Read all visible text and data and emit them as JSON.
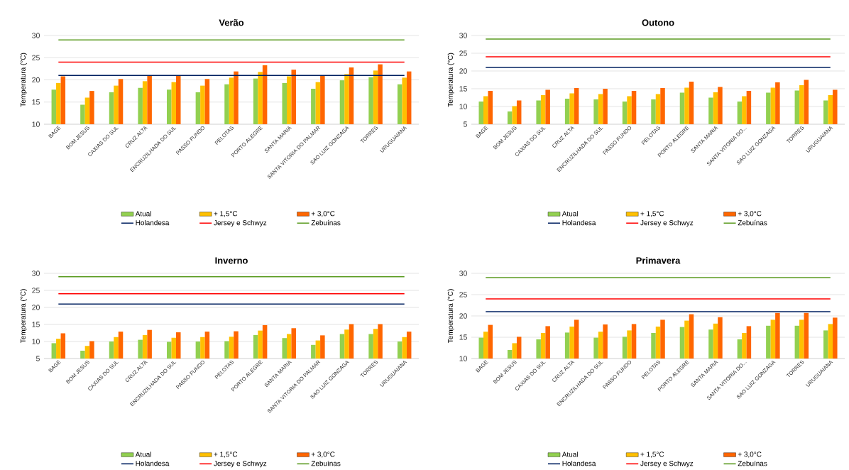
{
  "chart_data": [
    {
      "type": "bar",
      "title": "Verão",
      "ylabel": "Temperatura (°C)",
      "categories": [
        "BAGE",
        "BOM JESUS",
        "CAXIAS DO SUL",
        "CRUZ ALTA",
        "ENCRUZILHADA DO SUL",
        "PASSO FUNDO",
        "PELOTAS",
        "PORTO ALEGRE",
        "SANTA MARIA",
        "SANTA VITORIA DO PALMAR",
        "SAO LUIZ GONZAGA",
        "TORRES",
        "URUGUAIANA"
      ],
      "ylim": [
        10,
        30
      ],
      "yticks": [
        10,
        15,
        20,
        25,
        30
      ],
      "grid": "y",
      "legend": "bottom",
      "series": [
        {
          "name": "Atual",
          "color": "#92d050",
          "values": [
            17.8,
            14.4,
            17.2,
            18.2,
            17.8,
            17.2,
            19.0,
            20.3,
            19.3,
            18.0,
            19.9,
            20.6,
            19.0
          ]
        },
        {
          "name": "+ 1,5°C",
          "type": "bar",
          "color": "#ffc000",
          "values": [
            19.3,
            16.0,
            18.7,
            19.7,
            19.5,
            18.7,
            20.5,
            21.8,
            20.8,
            19.5,
            21.3,
            22.1,
            20.5
          ]
        },
        {
          "name": "+ 3,0°C",
          "type": "bar",
          "color": "#ff6600",
          "values": [
            20.8,
            17.5,
            20.2,
            21.0,
            21.0,
            20.2,
            21.9,
            23.3,
            22.3,
            21.0,
            22.8,
            23.5,
            21.9
          ]
        },
        {
          "name": "Holandesa",
          "type": "line",
          "color": "#002060",
          "values": [
            21,
            21,
            21,
            21,
            21,
            21,
            21,
            21,
            21,
            21,
            21,
            21,
            21
          ]
        },
        {
          "name": "Jersey e Schwyz",
          "type": "line",
          "color": "#ff0000",
          "values": [
            24,
            24,
            24,
            24,
            24,
            24,
            24,
            24,
            24,
            24,
            24,
            24,
            24
          ]
        },
        {
          "name": "Zebuínas",
          "type": "line",
          "color": "#5b9b21",
          "values": [
            29,
            29,
            29,
            29,
            29,
            29,
            29,
            29,
            29,
            29,
            29,
            29,
            29
          ]
        }
      ]
    },
    {
      "type": "bar",
      "title": "Outono",
      "ylabel": "Temperatura (°C)",
      "categories": [
        "BAGE",
        "BOM JESUS",
        "CAXIAS DO SUL",
        "CRUZ ALTA",
        "ENCRUZILHADA DO SUL",
        "PASSO FUNDO",
        "PELOTAS",
        "PORTO ALEGRE",
        "SANTA MARIA",
        "SANTA VITORIA DO...",
        "SAO LUIZ GONZAGA",
        "TORRES",
        "URUGUAIANA"
      ],
      "ylim": [
        5,
        30
      ],
      "yticks": [
        5,
        10,
        15,
        20,
        25,
        30
      ],
      "grid": "y",
      "legend": "bottom",
      "series": [
        {
          "name": "Atual",
          "type": "bar",
          "color": "#92d050",
          "values": [
            11.4,
            8.6,
            11.7,
            12.2,
            12.0,
            11.4,
            12.0,
            13.9,
            12.5,
            11.4,
            13.9,
            14.5,
            11.7
          ]
        },
        {
          "name": "+ 1,5°C",
          "type": "bar",
          "color": "#ffc000",
          "values": [
            12.9,
            10.1,
            13.2,
            13.7,
            13.5,
            12.9,
            13.5,
            15.3,
            14.0,
            12.9,
            15.3,
            16.0,
            13.2
          ]
        },
        {
          "name": "+ 3,0°C",
          "type": "bar",
          "color": "#ff6600",
          "values": [
            14.4,
            11.7,
            14.7,
            15.2,
            15.0,
            14.4,
            15.2,
            17.0,
            15.5,
            14.4,
            16.8,
            17.5,
            14.7
          ]
        },
        {
          "name": "Holandesa",
          "type": "line",
          "color": "#002060",
          "values": [
            21,
            21,
            21,
            21,
            21,
            21,
            21,
            21,
            21,
            21,
            21,
            21,
            21
          ]
        },
        {
          "name": "Jersey e Schwyz",
          "type": "line",
          "color": "#ff0000",
          "values": [
            24,
            24,
            24,
            24,
            24,
            24,
            24,
            24,
            24,
            24,
            24,
            24,
            24
          ]
        },
        {
          "name": "Zebuínas",
          "type": "line",
          "color": "#5b9b21",
          "values": [
            29,
            29,
            29,
            29,
            29,
            29,
            29,
            29,
            29,
            29,
            29,
            29,
            29
          ]
        }
      ]
    },
    {
      "type": "bar",
      "title": "Inverno",
      "ylabel": "Temperatura (°C)",
      "categories": [
        "BAGE",
        "BOM JESUS",
        "CAXIAS DO SUL",
        "CRUZ ALTA",
        "ENCRUZILHADA DO SUL",
        "PASSO FUNDO",
        "PELOTAS",
        "PORTO ALEGRE",
        "SANTA MARIA",
        "SANTA VITORIA DO PALMAR",
        "SAO LUIZ GONZAGA",
        "TORRES",
        "URUGUAIANA"
      ],
      "ylim": [
        5,
        30
      ],
      "yticks": [
        5,
        10,
        15,
        20,
        25,
        30
      ],
      "grid": "y",
      "legend": "bottom",
      "series": [
        {
          "name": "Atual",
          "type": "bar",
          "color": "#92d050",
          "values": [
            9.5,
            7.3,
            10.0,
            10.5,
            9.9,
            10.0,
            10.1,
            11.9,
            11.0,
            9.0,
            12.2,
            12.2,
            10.0
          ]
        },
        {
          "name": "+ 1,5°C",
          "type": "bar",
          "color": "#ffc000",
          "values": [
            10.8,
            8.7,
            11.3,
            11.9,
            11.1,
            11.3,
            11.4,
            13.2,
            12.2,
            10.3,
            13.5,
            13.7,
            11.3
          ]
        },
        {
          "name": "+ 3,0°C",
          "type": "bar",
          "color": "#ff6600",
          "values": [
            12.4,
            10.1,
            12.9,
            13.4,
            12.7,
            12.9,
            13.0,
            14.8,
            13.9,
            11.8,
            15.1,
            15.1,
            12.9
          ]
        },
        {
          "name": "Holandesa",
          "type": "line",
          "color": "#002060",
          "values": [
            21,
            21,
            21,
            21,
            21,
            21,
            21,
            21,
            21,
            21,
            21,
            21,
            21
          ]
        },
        {
          "name": "Jersey e Schwyz",
          "type": "line",
          "color": "#ff0000",
          "values": [
            24,
            24,
            24,
            24,
            24,
            24,
            24,
            24,
            24,
            24,
            24,
            24,
            24
          ]
        },
        {
          "name": "Zebuínas",
          "type": "line",
          "color": "#5b9b21",
          "values": [
            29,
            29,
            29,
            29,
            29,
            29,
            29,
            29,
            29,
            29,
            29,
            29,
            29
          ]
        }
      ]
    },
    {
      "type": "bar",
      "title": "Primavera",
      "ylabel": "Temperatura (°C)",
      "categories": [
        "BAGE",
        "BOM JESUS",
        "CAXIAS DO SUL",
        "CRUZ ALTA",
        "ENCRUZILHADA DO SUL",
        "PASSO FUNDO",
        "PELOTAS",
        "PORTO ALEGRE",
        "SANTA MARIA",
        "SANTA VITORIA DO...",
        "SAO LUIZ GONZAGA",
        "TORRES",
        "URUGUAIANA"
      ],
      "ylim": [
        10,
        30
      ],
      "yticks": [
        10,
        15,
        20,
        25,
        30
      ],
      "grid": "y",
      "legend": "bottom",
      "series": [
        {
          "name": "Atual",
          "type": "bar",
          "color": "#92d050",
          "values": [
            14.9,
            12.0,
            14.5,
            16.1,
            14.9,
            15.1,
            16.0,
            17.4,
            16.8,
            14.5,
            17.7,
            17.7,
            16.6
          ]
        },
        {
          "name": "+ 1,5°C",
          "type": "bar",
          "color": "#ffc000",
          "values": [
            16.3,
            13.6,
            16.0,
            17.5,
            16.3,
            16.6,
            17.5,
            18.9,
            18.2,
            16.0,
            19.1,
            19.1,
            18.1
          ]
        },
        {
          "name": "+ 3,0°C",
          "type": "bar",
          "color": "#ff6600",
          "values": [
            17.9,
            15.1,
            17.6,
            19.1,
            18.0,
            18.1,
            19.1,
            20.4,
            19.7,
            17.6,
            20.7,
            20.7,
            19.6
          ]
        },
        {
          "name": "Holandesa",
          "type": "line",
          "color": "#002060",
          "values": [
            21,
            21,
            21,
            21,
            21,
            21,
            21,
            21,
            21,
            21,
            21,
            21,
            21
          ]
        },
        {
          "name": "Jersey e Schwyz",
          "type": "line",
          "color": "#ff0000",
          "values": [
            24,
            24,
            24,
            24,
            24,
            24,
            24,
            24,
            24,
            24,
            24,
            24,
            24
          ]
        },
        {
          "name": "Zebuínas",
          "type": "line",
          "color": "#5b9b21",
          "values": [
            29,
            29,
            29,
            29,
            29,
            29,
            29,
            29,
            29,
            29,
            29,
            29,
            29
          ]
        }
      ]
    }
  ]
}
